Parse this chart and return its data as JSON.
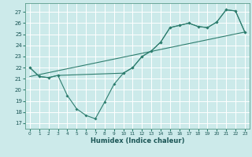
{
  "xlabel": "Humidex (Indice chaleur)",
  "bg_color": "#cceaea",
  "line_color": "#2d7d6e",
  "grid_color": "#ffffff",
  "xlim": [
    -0.5,
    23.5
  ],
  "ylim": [
    16.5,
    27.8
  ],
  "xticks": [
    0,
    1,
    2,
    3,
    4,
    5,
    6,
    7,
    8,
    9,
    10,
    11,
    12,
    13,
    14,
    15,
    16,
    17,
    18,
    19,
    20,
    21,
    22,
    23
  ],
  "yticks": [
    17,
    18,
    19,
    20,
    21,
    22,
    23,
    24,
    25,
    26,
    27
  ],
  "series_down_x": [
    0,
    1,
    2,
    3,
    4,
    5,
    6,
    7,
    8,
    9,
    10,
    11,
    12,
    13,
    14,
    15,
    16,
    17,
    18,
    19,
    20,
    21,
    22,
    23
  ],
  "series_down_y": [
    22,
    21.2,
    21.1,
    21.3,
    19.5,
    18.3,
    17.7,
    17.4,
    18.9,
    20.5,
    21.5,
    22.0,
    23.0,
    23.5,
    24.3,
    25.6,
    25.8,
    26.0,
    25.7,
    25.6,
    26.1,
    27.2,
    27.1,
    25.2
  ],
  "series_upper_x": [
    0,
    1,
    2,
    3,
    10,
    11,
    12,
    13,
    14,
    15,
    16,
    17,
    18,
    19,
    20,
    21,
    22,
    23
  ],
  "series_upper_y": [
    22,
    21.2,
    21.1,
    21.3,
    21.5,
    22.0,
    23.0,
    23.5,
    24.3,
    25.6,
    25.8,
    26.0,
    25.7,
    25.6,
    26.1,
    27.2,
    27.1,
    25.2
  ],
  "series_line_x": [
    0,
    23
  ],
  "series_line_y": [
    21.2,
    25.2
  ]
}
